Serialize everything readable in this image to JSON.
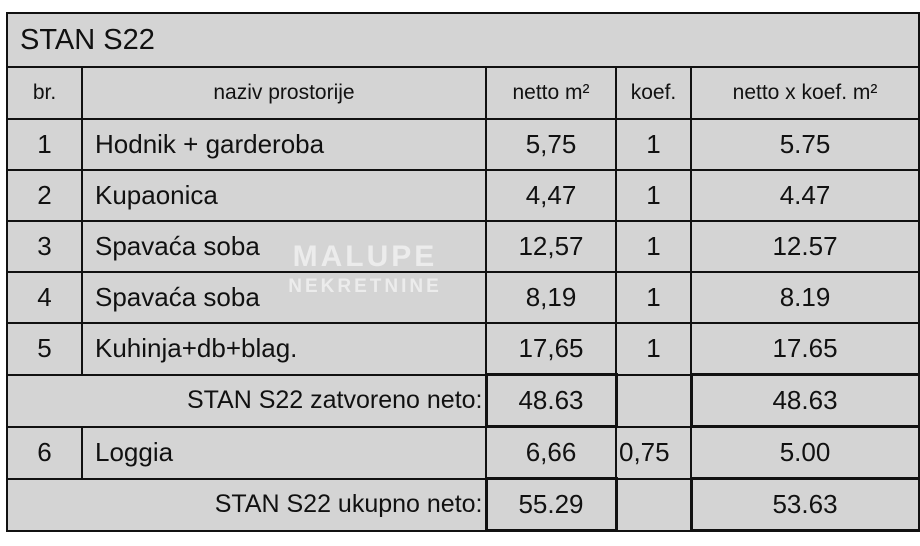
{
  "title": "STAN S22",
  "headers": {
    "br": "br.",
    "naziv": "naziv prostorije",
    "netto": "netto m²",
    "koef": "koef.",
    "netto_koef": "netto x koef. m²"
  },
  "rooms": [
    {
      "br": "1",
      "naziv": "Hodnik + garderoba",
      "netto": "5,75",
      "koef": "1",
      "netto_koef": "5.75"
    },
    {
      "br": "2",
      "naziv": "Kupaonica",
      "netto": "4,47",
      "koef": "1",
      "netto_koef": "4.47"
    },
    {
      "br": "3",
      "naziv": "Spavaća soba",
      "netto": "12,57",
      "koef": "1",
      "netto_koef": "12.57"
    },
    {
      "br": "4",
      "naziv": "Spavaća soba",
      "netto": "8,19",
      "koef": "1",
      "netto_koef": "8.19"
    },
    {
      "br": "5",
      "naziv": "Kuhinja+db+blag.",
      "netto": "17,65",
      "koef": "1",
      "netto_koef": "17.65"
    }
  ],
  "subtotal": {
    "label": "STAN S22 zatvoreno neto:",
    "netto": "48.63",
    "netto_koef": "48.63"
  },
  "loggia": {
    "br": "6",
    "naziv": "Loggia",
    "netto": "6,66",
    "koef": "0,75",
    "netto_koef": "5.00"
  },
  "total": {
    "label": "STAN S22 ukupno neto:",
    "netto": "55.29",
    "netto_koef": "53.63"
  },
  "watermark": {
    "line1": "MALUPE",
    "line2": "NEKRETNINE"
  }
}
